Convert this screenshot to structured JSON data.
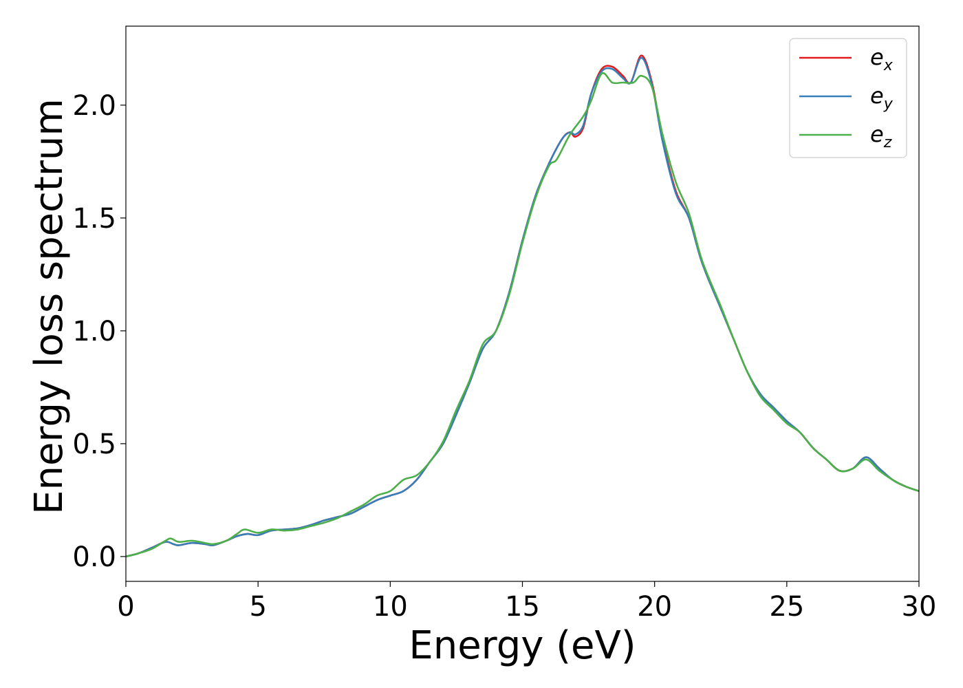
{
  "chart_data": {
    "type": "line",
    "title": "",
    "xlabel": "Energy (eV)",
    "ylabel": "Energy loss spectrum",
    "xlim": [
      0,
      30
    ],
    "ylim": [
      -0.11,
      2.35
    ],
    "xticks": [
      0,
      5,
      10,
      15,
      20,
      25,
      30
    ],
    "xtick_labels": [
      "0",
      "5",
      "10",
      "15",
      "20",
      "25",
      "30"
    ],
    "yticks": [
      0.0,
      0.5,
      1.0,
      1.5,
      2.0
    ],
    "ytick_labels": [
      "0.0",
      "0.5",
      "1.0",
      "1.5",
      "2.0"
    ],
    "grid": false,
    "legend_position": "top-right",
    "series": [
      {
        "name": "e_x",
        "label_base": "e",
        "label_sub": "x",
        "color": "#e41a1c",
        "points": [
          [
            0,
            0
          ],
          [
            0.5,
            0.015
          ],
          [
            1,
            0.04
          ],
          [
            1.5,
            0.065
          ],
          [
            1.8,
            0.055
          ],
          [
            2,
            0.05
          ],
          [
            2.5,
            0.06
          ],
          [
            3,
            0.055
          ],
          [
            3.3,
            0.05
          ],
          [
            3.8,
            0.07
          ],
          [
            4.2,
            0.09
          ],
          [
            4.6,
            0.1
          ],
          [
            5,
            0.095
          ],
          [
            5.5,
            0.115
          ],
          [
            6,
            0.12
          ],
          [
            6.5,
            0.125
          ],
          [
            7,
            0.14
          ],
          [
            7.5,
            0.16
          ],
          [
            8,
            0.175
          ],
          [
            8.5,
            0.19
          ],
          [
            9,
            0.22
          ],
          [
            9.5,
            0.25
          ],
          [
            10,
            0.27
          ],
          [
            10.5,
            0.29
          ],
          [
            11,
            0.34
          ],
          [
            11.5,
            0.42
          ],
          [
            12,
            0.5
          ],
          [
            12.5,
            0.63
          ],
          [
            13,
            0.77
          ],
          [
            13.5,
            0.92
          ],
          [
            14,
            1.0
          ],
          [
            14.5,
            1.17
          ],
          [
            15,
            1.4
          ],
          [
            15.5,
            1.6
          ],
          [
            16,
            1.74
          ],
          [
            16.5,
            1.85
          ],
          [
            16.8,
            1.88
          ],
          [
            17,
            1.86
          ],
          [
            17.3,
            1.9
          ],
          [
            17.6,
            2.05
          ],
          [
            18,
            2.16
          ],
          [
            18.4,
            2.17
          ],
          [
            18.8,
            2.13
          ],
          [
            19.1,
            2.1
          ],
          [
            19.5,
            2.22
          ],
          [
            19.9,
            2.1
          ],
          [
            20.3,
            1.85
          ],
          [
            20.8,
            1.62
          ],
          [
            21.3,
            1.5
          ],
          [
            21.8,
            1.3
          ],
          [
            22.5,
            1.1
          ],
          [
            23,
            0.96
          ],
          [
            23.5,
            0.82
          ],
          [
            24,
            0.72
          ],
          [
            24.5,
            0.66
          ],
          [
            25,
            0.6
          ],
          [
            25.5,
            0.55
          ],
          [
            26,
            0.48
          ],
          [
            26.5,
            0.43
          ],
          [
            27,
            0.38
          ],
          [
            27.5,
            0.39
          ],
          [
            28,
            0.44
          ],
          [
            28.5,
            0.39
          ],
          [
            29,
            0.34
          ],
          [
            29.5,
            0.31
          ],
          [
            30,
            0.29
          ]
        ]
      },
      {
        "name": "e_y",
        "label_base": "e",
        "label_sub": "y",
        "color": "#377eb8",
        "points": [
          [
            0,
            0
          ],
          [
            0.5,
            0.015
          ],
          [
            1,
            0.04
          ],
          [
            1.5,
            0.065
          ],
          [
            1.8,
            0.055
          ],
          [
            2,
            0.05
          ],
          [
            2.5,
            0.06
          ],
          [
            3,
            0.055
          ],
          [
            3.3,
            0.05
          ],
          [
            3.8,
            0.07
          ],
          [
            4.2,
            0.09
          ],
          [
            4.6,
            0.1
          ],
          [
            5,
            0.095
          ],
          [
            5.5,
            0.115
          ],
          [
            6,
            0.12
          ],
          [
            6.5,
            0.125
          ],
          [
            7,
            0.14
          ],
          [
            7.5,
            0.16
          ],
          [
            8,
            0.175
          ],
          [
            8.5,
            0.19
          ],
          [
            9,
            0.22
          ],
          [
            9.5,
            0.25
          ],
          [
            10,
            0.27
          ],
          [
            10.5,
            0.29
          ],
          [
            11,
            0.34
          ],
          [
            11.5,
            0.42
          ],
          [
            12,
            0.5
          ],
          [
            12.5,
            0.63
          ],
          [
            13,
            0.77
          ],
          [
            13.5,
            0.92
          ],
          [
            14,
            1.0
          ],
          [
            14.5,
            1.17
          ],
          [
            15,
            1.4
          ],
          [
            15.5,
            1.6
          ],
          [
            16,
            1.74
          ],
          [
            16.5,
            1.85
          ],
          [
            16.8,
            1.88
          ],
          [
            17,
            1.87
          ],
          [
            17.3,
            1.91
          ],
          [
            17.6,
            2.05
          ],
          [
            18,
            2.15
          ],
          [
            18.4,
            2.16
          ],
          [
            18.8,
            2.12
          ],
          [
            19.1,
            2.1
          ],
          [
            19.5,
            2.21
          ],
          [
            19.9,
            2.09
          ],
          [
            20.3,
            1.84
          ],
          [
            20.8,
            1.61
          ],
          [
            21.3,
            1.5
          ],
          [
            21.8,
            1.3
          ],
          [
            22.5,
            1.1
          ],
          [
            23,
            0.96
          ],
          [
            23.5,
            0.82
          ],
          [
            24,
            0.72
          ],
          [
            24.5,
            0.66
          ],
          [
            25,
            0.6
          ],
          [
            25.5,
            0.55
          ],
          [
            26,
            0.48
          ],
          [
            26.5,
            0.43
          ],
          [
            27,
            0.38
          ],
          [
            27.5,
            0.39
          ],
          [
            28,
            0.44
          ],
          [
            28.5,
            0.39
          ],
          [
            29,
            0.34
          ],
          [
            29.5,
            0.31
          ],
          [
            30,
            0.29
          ]
        ]
      },
      {
        "name": "e_z",
        "label_base": "e",
        "label_sub": "z",
        "color": "#4daf4a",
        "points": [
          [
            0,
            0
          ],
          [
            0.5,
            0.015
          ],
          [
            1,
            0.035
          ],
          [
            1.5,
            0.07
          ],
          [
            1.7,
            0.08
          ],
          [
            2,
            0.065
          ],
          [
            2.5,
            0.07
          ],
          [
            3,
            0.06
          ],
          [
            3.3,
            0.055
          ],
          [
            3.8,
            0.07
          ],
          [
            4.2,
            0.1
          ],
          [
            4.5,
            0.12
          ],
          [
            5,
            0.105
          ],
          [
            5.5,
            0.12
          ],
          [
            6,
            0.115
          ],
          [
            6.5,
            0.12
          ],
          [
            7,
            0.135
          ],
          [
            7.5,
            0.15
          ],
          [
            8,
            0.17
          ],
          [
            8.5,
            0.2
          ],
          [
            9,
            0.23
          ],
          [
            9.5,
            0.27
          ],
          [
            10,
            0.29
          ],
          [
            10.5,
            0.34
          ],
          [
            11,
            0.36
          ],
          [
            11.5,
            0.42
          ],
          [
            12,
            0.51
          ],
          [
            12.5,
            0.65
          ],
          [
            13,
            0.78
          ],
          [
            13.5,
            0.94
          ],
          [
            14,
            1.0
          ],
          [
            14.5,
            1.16
          ],
          [
            15,
            1.39
          ],
          [
            15.5,
            1.59
          ],
          [
            16,
            1.73
          ],
          [
            16.3,
            1.76
          ],
          [
            16.8,
            1.87
          ],
          [
            17.3,
            1.95
          ],
          [
            17.6,
            2.02
          ],
          [
            18,
            2.14
          ],
          [
            18.4,
            2.1
          ],
          [
            18.8,
            2.1
          ],
          [
            19.2,
            2.1
          ],
          [
            19.5,
            2.13
          ],
          [
            19.9,
            2.08
          ],
          [
            20.3,
            1.87
          ],
          [
            20.8,
            1.66
          ],
          [
            21.3,
            1.52
          ],
          [
            21.8,
            1.31
          ],
          [
            22.5,
            1.11
          ],
          [
            23,
            0.96
          ],
          [
            23.5,
            0.82
          ],
          [
            24,
            0.71
          ],
          [
            24.5,
            0.65
          ],
          [
            25,
            0.59
          ],
          [
            25.5,
            0.55
          ],
          [
            26,
            0.48
          ],
          [
            26.5,
            0.43
          ],
          [
            27,
            0.38
          ],
          [
            27.5,
            0.39
          ],
          [
            28,
            0.43
          ],
          [
            28.5,
            0.38
          ],
          [
            29,
            0.34
          ],
          [
            29.5,
            0.31
          ],
          [
            30,
            0.29
          ]
        ]
      }
    ]
  }
}
